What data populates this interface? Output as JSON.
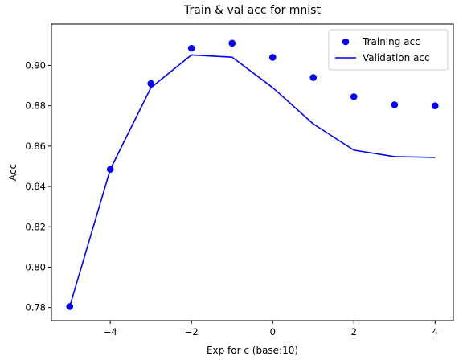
{
  "chart_data": {
    "type": "line",
    "title": "Train & val acc for mnist",
    "xlabel": "Exp for c (base:10)",
    "ylabel": "Acc",
    "xlim": [
      -5.45,
      4.45
    ],
    "ylim": [
      0.7735,
      0.9205
    ],
    "xticks": [
      -4,
      -2,
      0,
      2,
      4
    ],
    "xtick_labels": [
      "−4",
      "−2",
      "0",
      "2",
      "4"
    ],
    "yticks": [
      0.78,
      0.8,
      0.82,
      0.84,
      0.86,
      0.88,
      0.9
    ],
    "ytick_labels": [
      "0.78",
      "0.80",
      "0.82",
      "0.84",
      "0.86",
      "0.88",
      "0.90"
    ],
    "grid": false,
    "legend_position": "top-right",
    "x": [
      -5,
      -4,
      -3,
      -2,
      -1,
      0,
      1,
      2,
      3,
      4
    ],
    "series": [
      {
        "name": "Training acc",
        "style": "markers",
        "color": "#0000ff",
        "values": [
          0.7805,
          0.8485,
          0.891,
          0.9085,
          0.911,
          0.904,
          0.894,
          0.8845,
          0.8805,
          0.88
        ]
      },
      {
        "name": "Validation acc",
        "style": "line",
        "color": "#0000ff",
        "values": [
          0.7805,
          0.8485,
          0.889,
          0.9052,
          0.9041,
          0.889,
          0.871,
          0.858,
          0.8548,
          0.8544
        ]
      }
    ]
  }
}
